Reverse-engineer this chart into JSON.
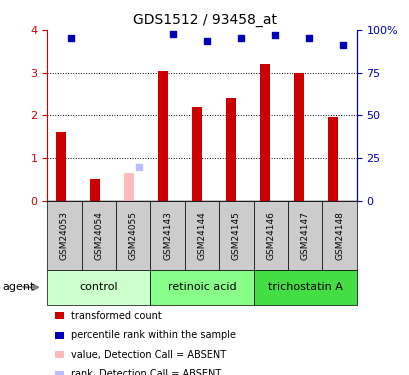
{
  "title": "GDS1512 / 93458_at",
  "samples": [
    "GSM24053",
    "GSM24054",
    "GSM24055",
    "GSM24143",
    "GSM24144",
    "GSM24145",
    "GSM24146",
    "GSM24147",
    "GSM24148"
  ],
  "red_values": [
    1.6,
    0.5,
    null,
    3.05,
    2.2,
    2.4,
    3.2,
    3.0,
    1.95
  ],
  "blue_values": [
    95.5,
    null,
    null,
    97.5,
    93.75,
    95.5,
    97.0,
    95.5,
    91.25
  ],
  "absent_red": [
    null,
    null,
    0.65,
    null,
    null,
    null,
    null,
    null,
    null
  ],
  "absent_blue": [
    null,
    null,
    20.0,
    null,
    null,
    null,
    null,
    null,
    null
  ],
  "groups": [
    {
      "label": "control",
      "start": 0,
      "end": 3,
      "color": "#ccffcc"
    },
    {
      "label": "retinoic acid",
      "start": 3,
      "end": 6,
      "color": "#88ff88"
    },
    {
      "label": "trichostatin A",
      "start": 6,
      "end": 9,
      "color": "#44dd44"
    }
  ],
  "ylim_left": [
    0,
    4
  ],
  "ylim_right": [
    0,
    100
  ],
  "yticks_left": [
    0,
    1,
    2,
    3,
    4
  ],
  "yticks_right": [
    0,
    25,
    50,
    75,
    100
  ],
  "bar_width": 0.3,
  "red_color": "#cc0000",
  "blue_color": "#0000bb",
  "absent_red_color": "#ffbbbb",
  "absent_blue_color": "#bbbbff",
  "bg_color": "#ffffff",
  "sample_cell_color": "#cccccc",
  "legend_items": [
    {
      "color": "#cc0000",
      "label": "transformed count"
    },
    {
      "color": "#0000bb",
      "label": "percentile rank within the sample"
    },
    {
      "color": "#ffbbbb",
      "label": "value, Detection Call = ABSENT"
    },
    {
      "color": "#bbbbff",
      "label": "rank, Detection Call = ABSENT"
    }
  ]
}
